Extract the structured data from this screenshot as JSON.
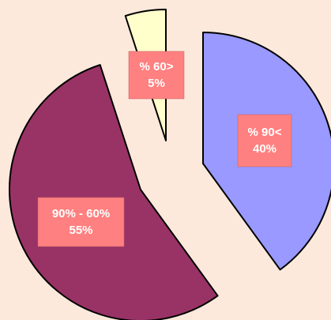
{
  "chart_data": {
    "type": "pie",
    "categories": [
      "% 90<",
      "90% - 60%",
      "% 60>"
    ],
    "values": [
      40,
      55,
      5
    ],
    "value_labels": [
      "40%",
      "55%",
      "5%"
    ],
    "colors": [
      "#9999ff",
      "#993366",
      "#ffffcc"
    ]
  }
}
